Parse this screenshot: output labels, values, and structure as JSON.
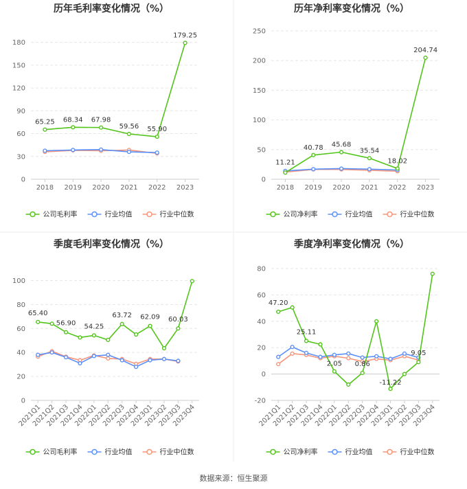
{
  "source": "数据来源：恒生聚源",
  "colors": {
    "company": "#52c41a",
    "avg": "#5b8ff9",
    "median": "#f6957a",
    "grid": "#e6e6e6"
  },
  "chart_data": [
    {
      "type": "line",
      "title": "历年毛利率变化情况（%）",
      "categories": [
        "2018",
        "2019",
        "2020",
        "2021",
        "2022",
        "2023"
      ],
      "yticks": [
        0,
        30,
        60,
        90,
        120,
        150,
        180
      ],
      "ylim": [
        0,
        195
      ],
      "tick_rotate": false,
      "series": [
        {
          "name": "公司毛利率",
          "color": "#52c41a",
          "values": [
            65.25,
            68.34,
            67.98,
            59.56,
            55.9,
            179.25
          ]
        },
        {
          "name": "行业均值",
          "color": "#5b8ff9",
          "values": [
            37.5,
            38.5,
            39.0,
            36.0,
            35.0,
            null
          ]
        },
        {
          "name": "行业中位数",
          "color": "#f6957a",
          "values": [
            36.0,
            38.0,
            37.5,
            38.5,
            34.0,
            null
          ]
        }
      ],
      "labels": [
        {
          "i": 0,
          "text": "65.25",
          "dy": -8
        },
        {
          "i": 1,
          "text": "68.34",
          "dy": -8
        },
        {
          "i": 2,
          "text": "67.98",
          "dy": -8
        },
        {
          "i": 3,
          "text": "59.56",
          "dy": -8
        },
        {
          "i": 4,
          "text": "55.90",
          "dy": -8
        },
        {
          "i": 5,
          "text": "179.25",
          "dy": -8
        }
      ]
    },
    {
      "type": "line",
      "title": "历年净利率变化情况（%）",
      "categories": [
        "2018",
        "2019",
        "2020",
        "2021",
        "2022",
        "2023"
      ],
      "yticks": [
        0,
        50,
        100,
        150,
        200,
        250
      ],
      "ylim": [
        0,
        250
      ],
      "tick_rotate": false,
      "series": [
        {
          "name": "公司净利率",
          "color": "#52c41a",
          "values": [
            11.21,
            40.78,
            45.68,
            35.54,
            18.02,
            204.74
          ]
        },
        {
          "name": "行业均值",
          "color": "#5b8ff9",
          "values": [
            14.0,
            17.0,
            18.0,
            17.0,
            15.5,
            null
          ]
        },
        {
          "name": "行业中位数",
          "color": "#f6957a",
          "values": [
            12.0,
            16.5,
            16.5,
            15.0,
            13.5,
            null
          ]
        }
      ],
      "labels": [
        {
          "i": 0,
          "text": "11.21",
          "dy": -12
        },
        {
          "i": 1,
          "text": "40.78",
          "dy": -8
        },
        {
          "i": 2,
          "text": "45.68",
          "dy": -8
        },
        {
          "i": 3,
          "text": "35.54",
          "dy": -8
        },
        {
          "i": 4,
          "text": "18.02",
          "dy": -8
        },
        {
          "i": 5,
          "text": "204.74",
          "dy": -8
        }
      ]
    },
    {
      "type": "line",
      "title": "季度毛利率变化情况（%）",
      "categories": [
        "2021Q1",
        "2021Q2",
        "2021Q3",
        "2021Q4",
        "2022Q1",
        "2022Q2",
        "2022Q3",
        "2022Q4",
        "2023Q1",
        "2023Q2",
        "2023Q3",
        "2023Q4"
      ],
      "yticks": [
        0,
        20,
        40,
        60,
        80,
        100
      ],
      "ylim": [
        0,
        110
      ],
      "tick_rotate": true,
      "series": [
        {
          "name": "公司毛利率",
          "color": "#52c41a",
          "values": [
            65.4,
            64.0,
            56.9,
            52.5,
            54.25,
            50.5,
            63.72,
            55.0,
            62.09,
            43.5,
            60.03,
            99.5
          ]
        },
        {
          "name": "行业均值",
          "color": "#5b8ff9",
          "values": [
            38.0,
            40.0,
            36.0,
            31.0,
            37.0,
            38.0,
            33.5,
            28.0,
            33.5,
            34.5,
            33.0,
            null
          ]
        },
        {
          "name": "行业中位数",
          "color": "#f6957a",
          "values": [
            36.5,
            41.0,
            36.5,
            33.5,
            37.5,
            35.0,
            34.5,
            30.5,
            34.5,
            34.5,
            32.5,
            null
          ]
        }
      ],
      "labels": [
        {
          "i": 0,
          "text": "65.40",
          "dy": -10
        },
        {
          "i": 2,
          "text": "56.90",
          "dy": -10
        },
        {
          "i": 4,
          "text": "54.25",
          "dy": -10
        },
        {
          "i": 6,
          "text": "63.72",
          "dy": -10
        },
        {
          "i": 8,
          "text": "62.09",
          "dy": -10
        },
        {
          "i": 10,
          "text": "60.03",
          "dy": -10
        }
      ]
    },
    {
      "type": "line",
      "title": "季度净利率变化情况（%）",
      "categories": [
        "2021Q1",
        "2021Q2",
        "2021Q3",
        "2021Q4",
        "2022Q1",
        "2022Q2",
        "2022Q3",
        "2022Q4",
        "2023Q1",
        "2023Q2",
        "2023Q3",
        "2023Q4"
      ],
      "yticks": [
        -20,
        0,
        20,
        40,
        60,
        80
      ],
      "ylim": [
        -20,
        80
      ],
      "tick_rotate": true,
      "series": [
        {
          "name": "公司净利率",
          "color": "#52c41a",
          "values": [
            47.2,
            50.5,
            25.11,
            22.5,
            2.05,
            -8.0,
            0.86,
            40.0,
            -11.22,
            0.0,
            9.05,
            76.0
          ]
        },
        {
          "name": "行业均值",
          "color": "#5b8ff9",
          "values": [
            13.0,
            20.5,
            16.0,
            13.0,
            14.5,
            15.5,
            12.5,
            13.5,
            11.5,
            15.5,
            12.5,
            null
          ]
        },
        {
          "name": "行业中位数",
          "color": "#f6957a",
          "values": [
            7.5,
            15.5,
            14.5,
            12.0,
            13.5,
            12.0,
            9.5,
            11.5,
            10.5,
            13.5,
            10.5,
            null
          ]
        }
      ],
      "labels": [
        {
          "i": 0,
          "text": "47.20",
          "dy": -10
        },
        {
          "i": 2,
          "text": "25.11",
          "dy": -10
        },
        {
          "i": 4,
          "text": "2.05",
          "dy": -8
        },
        {
          "i": 6,
          "text": "0.86",
          "dy": -10
        },
        {
          "i": 8,
          "text": "-11.22",
          "dy": -6
        },
        {
          "i": 10,
          "text": "9.05",
          "dy": -10
        }
      ]
    }
  ]
}
